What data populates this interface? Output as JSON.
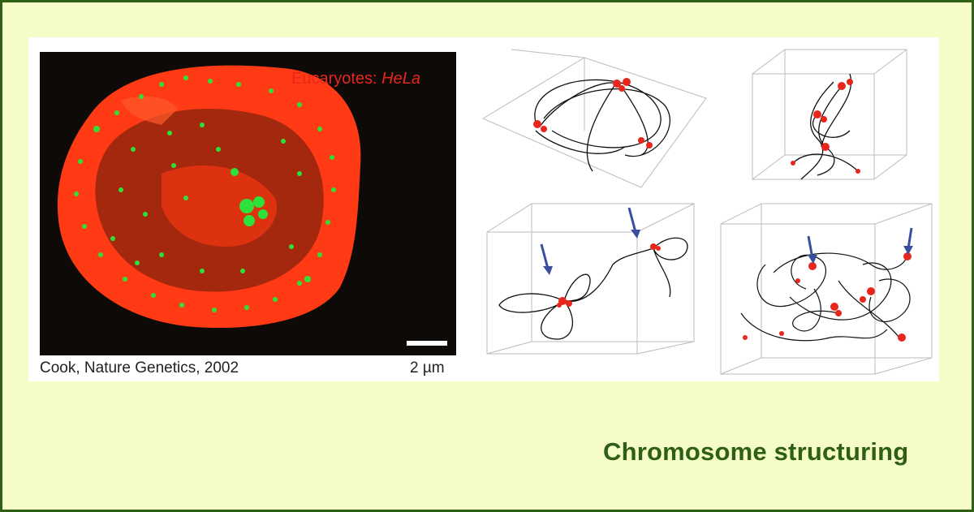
{
  "figure": {
    "micrograph": {
      "label_prefix": "Eucaryotes: ",
      "label_italic": "HeLa",
      "scale_bar": "2 µm",
      "credit": "Cook, Nature Genetics, 2002",
      "colors": {
        "nucleus": "#ff3a1a",
        "foci": "#2ee03a",
        "background": "#0b0b0b",
        "label": "#e8261c"
      }
    },
    "models": {
      "line_color": "#111111",
      "node_color": "#e8261c",
      "arrow_color": "#3a4ea0",
      "panels": [
        "model-top-left",
        "model-top-right",
        "model-bottom-left",
        "model-bottom-right"
      ]
    }
  },
  "slide": {
    "title": "Chromosome structuring",
    "colors": {
      "background": "#f5fcc7",
      "border": "#2e5f14",
      "title": "#2e5f14"
    }
  }
}
